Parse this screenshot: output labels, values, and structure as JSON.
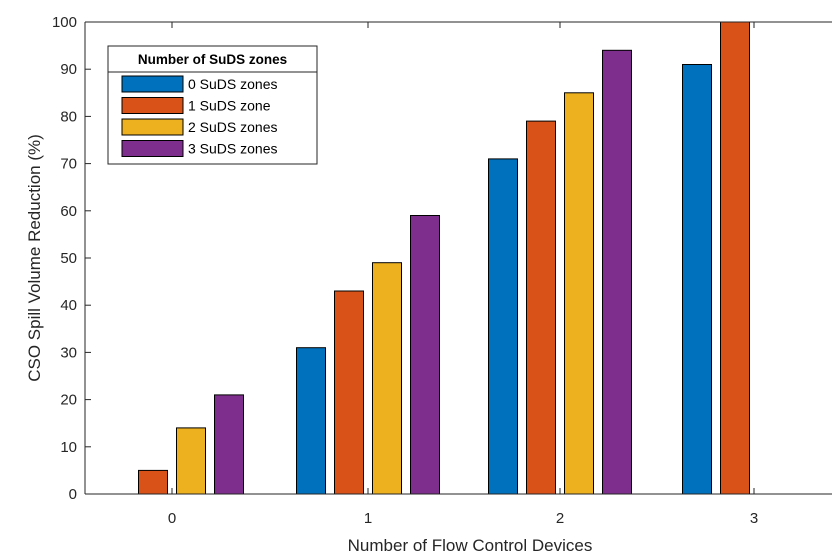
{
  "chart_data": {
    "type": "bar",
    "categories": [
      "0",
      "1",
      "2",
      "3"
    ],
    "xlabel": "Number of Flow Control Devices",
    "ylabel": "CSO Spill Volume Reduction (%)",
    "ylim": [
      0,
      100
    ],
    "yticks": [
      0,
      10,
      20,
      30,
      40,
      50,
      60,
      70,
      80,
      90,
      100
    ],
    "grid": false,
    "legend": {
      "title": "Number of SuDS zones",
      "placement": "top-left"
    },
    "series": [
      {
        "name": "0 SuDS zones",
        "color": "#0072BD",
        "values": [
          0,
          31,
          71,
          91
        ]
      },
      {
        "name": "1 SuDS zone",
        "color": "#D95319",
        "values": [
          5,
          43,
          79,
          100
        ]
      },
      {
        "name": "2 SuDS zones",
        "color": "#EDB120",
        "values": [
          14,
          49,
          85,
          null
        ]
      },
      {
        "name": "3 SuDS zones",
        "color": "#7E2F8E",
        "values": [
          21,
          59,
          94,
          null
        ]
      }
    ]
  }
}
